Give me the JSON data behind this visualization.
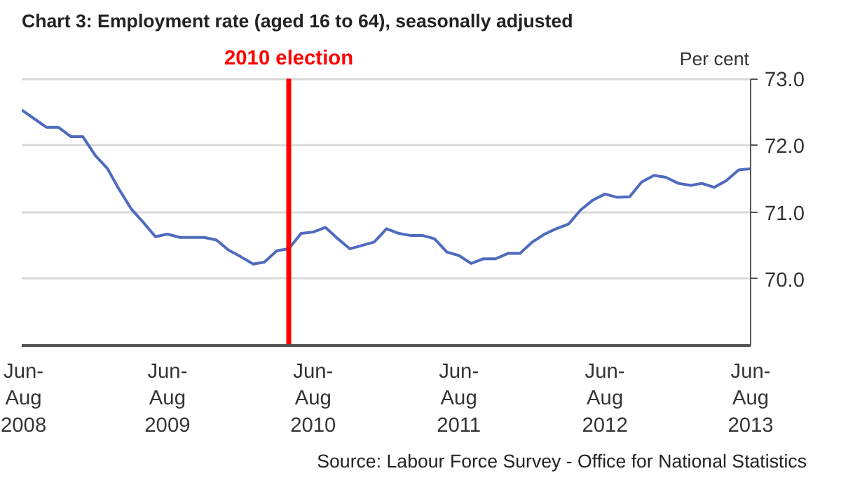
{
  "chart_data": {
    "type": "line",
    "title": "Chart 3: Employment rate (aged 16 to 64), seasonally adjusted",
    "ylabel": "Per cent",
    "annotations": [
      "Source: Labour Force Survey - Office for National Statistics"
    ],
    "x": [
      "2008-07",
      "2008-08",
      "2008-09",
      "2008-10",
      "2008-11",
      "2008-12",
      "2009-01",
      "2009-02",
      "2009-03",
      "2009-04",
      "2009-05",
      "2009-06",
      "2009-07",
      "2009-08",
      "2009-09",
      "2009-10",
      "2009-11",
      "2009-12",
      "2010-01",
      "2010-02",
      "2010-03",
      "2010-04",
      "2010-05",
      "2010-06",
      "2010-07",
      "2010-08",
      "2010-09",
      "2010-10",
      "2010-11",
      "2010-12",
      "2011-01",
      "2011-02",
      "2011-03",
      "2011-04",
      "2011-05",
      "2011-06",
      "2011-07",
      "2011-08",
      "2011-09",
      "2011-10",
      "2011-11",
      "2011-12",
      "2012-01",
      "2012-02",
      "2012-03",
      "2012-04",
      "2012-05",
      "2012-06",
      "2012-07",
      "2012-08",
      "2012-09",
      "2012-10",
      "2012-11",
      "2012-12",
      "2013-01",
      "2013-02",
      "2013-03",
      "2013-04",
      "2013-05",
      "2013-06",
      "2013-07"
    ],
    "series": [
      {
        "color": "#4f6bbf",
        "values": [
          72.53,
          72.4,
          72.27,
          72.27,
          72.13,
          72.13,
          71.85,
          71.65,
          71.35,
          71.05,
          70.85,
          70.63,
          70.67,
          70.62,
          70.62,
          70.62,
          70.58,
          70.43,
          70.33,
          70.22,
          70.25,
          70.42,
          70.45,
          70.68,
          70.7,
          70.77,
          70.6,
          70.45,
          70.5,
          70.55,
          70.75,
          70.68,
          70.65,
          70.65,
          70.6,
          70.4,
          70.35,
          70.23,
          70.3,
          70.3,
          70.38,
          70.38,
          70.55,
          70.67,
          70.75,
          70.82,
          71.03,
          71.18,
          71.27,
          71.22,
          71.23,
          71.45,
          71.55,
          71.52,
          71.43,
          71.4,
          71.43,
          71.37,
          71.47,
          71.63,
          71.65
        ]
      }
    ],
    "xlim": [
      "2008-07",
      "2013-07"
    ],
    "xticks": [
      {
        "value": "2008-07",
        "label": "Jun-\nAug\n2008"
      },
      {
        "value": "2009-07",
        "label": "Jun-\nAug\n2009"
      },
      {
        "value": "2010-07",
        "label": "Jun-\nAug\n2010"
      },
      {
        "value": "2011-07",
        "label": "Jun-\nAug\n2011"
      },
      {
        "value": "2012-07",
        "label": "Jun-\nAug\n2012"
      },
      {
        "value": "2013-07",
        "label": "Jun-\nAug\n2013"
      }
    ],
    "ylim": [
      69.0,
      73.0
    ],
    "yticks": [
      {
        "value": 70.0,
        "label": "70.0"
      },
      {
        "value": 71.0,
        "label": "71.0"
      },
      {
        "value": 72.0,
        "label": "72.0"
      },
      {
        "value": 73.0,
        "label": "73.0"
      }
    ],
    "ref_lines": [
      {
        "axis": "x",
        "value": "2010-05",
        "label": "2010 election",
        "color": "#ff0000"
      }
    ],
    "grid": "y",
    "marker": "none",
    "line_style": "solid"
  }
}
